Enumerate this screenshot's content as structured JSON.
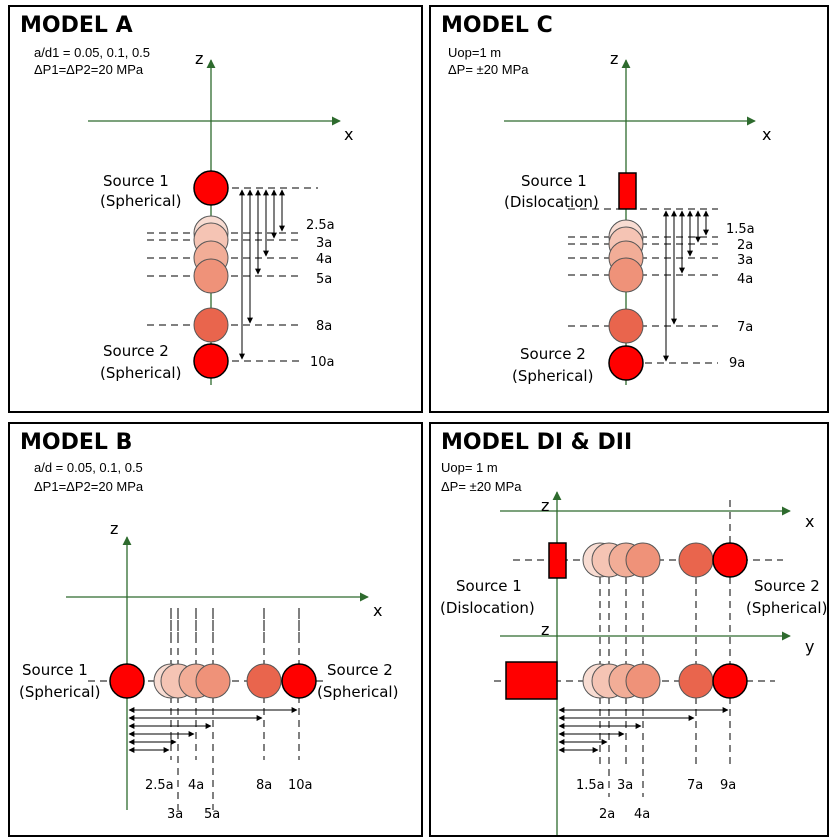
{
  "colors": {
    "axis": "#2e6b2e",
    "source": "#ff0000",
    "stroke": "#000000",
    "fills": [
      "#f8dcd2",
      "#f5c4b4",
      "#f2ad97",
      "#ef9279",
      "#e9654d"
    ]
  },
  "panel_a": {
    "title": "MODEL A",
    "param1": "a/d1 = 0.05, 0.1, 0.5",
    "param2": "ΔP1=ΔP2=20 MPa",
    "z": "z",
    "x": "x",
    "source1": "Source 1",
    "source1_type": "(Spherical)",
    "source2": "Source 2",
    "source2_type": "(Spherical)",
    "marks": [
      "2.5a",
      "3a",
      "4a",
      "5a",
      "8a",
      "10a"
    ]
  },
  "panel_b": {
    "title": "MODEL B",
    "param1": "a/d = 0.05, 0.1, 0.5",
    "param2": "ΔP1=ΔP2=20 MPa",
    "z": "z",
    "x": "x",
    "source1": "Source 1",
    "source1_type": "(Spherical)",
    "source2": "Source 2",
    "source2_type": "(Spherical)",
    "marks": [
      "2.5a",
      "3a",
      "4a",
      "5a",
      "8a",
      "10a"
    ]
  },
  "panel_c": {
    "title": "MODEL C",
    "param1": "Uop=1 m",
    "param2": "ΔP= ±20 MPa",
    "z": "z",
    "x": "x",
    "source1": "Source 1",
    "source1_type": "(Dislocation)",
    "source2": "Source 2",
    "source2_type": "(Spherical)",
    "marks": [
      "1.5a",
      "2a",
      "3a",
      "4a",
      "7a",
      "9a"
    ]
  },
  "panel_d": {
    "title": "MODEL DI & DII",
    "param1": "Uop= 1 m",
    "param2": "ΔP= ±20 MPa",
    "z1": "z",
    "x": "x",
    "z2": "z",
    "y": "y",
    "source1": "Source 1",
    "source1_type": "(Dislocation)",
    "source2": "Source 2",
    "source2_type": "(Spherical)",
    "marks": [
      "1.5a",
      "2a",
      "3a",
      "4a",
      "7a",
      "9a"
    ]
  }
}
